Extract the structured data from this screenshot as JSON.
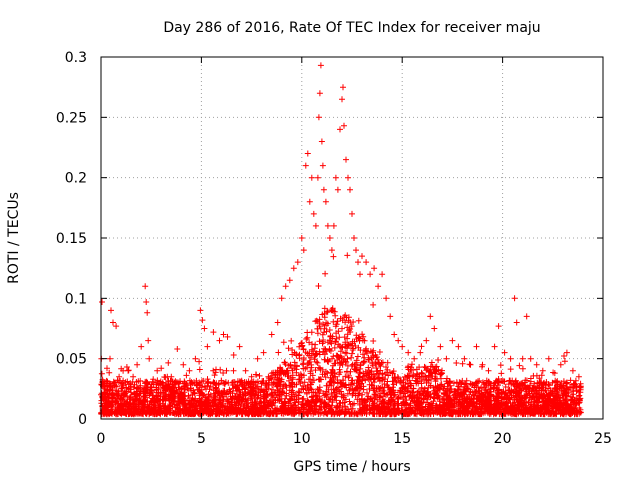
{
  "chart_data": {
    "type": "scatter",
    "title": "Day 286 of 2016, Rate Of TEC Index for receiver maju",
    "xlabel": "GPS time / hours",
    "ylabel": "ROTI / TECUs",
    "xlim": [
      0,
      25
    ],
    "ylim": [
      0,
      0.3
    ],
    "xticks": [
      {
        "value": 0,
        "label": "0"
      },
      {
        "value": 5,
        "label": "5"
      },
      {
        "value": 10,
        "label": "10"
      },
      {
        "value": 15,
        "label": "15"
      },
      {
        "value": 20,
        "label": "20"
      },
      {
        "value": 25,
        "label": "25"
      }
    ],
    "yticks": [
      {
        "value": 0,
        "label": "0"
      },
      {
        "value": 0.05,
        "label": "0.05"
      },
      {
        "value": 0.1,
        "label": "0.1"
      },
      {
        "value": 0.15,
        "label": "0.15"
      },
      {
        "value": 0.2,
        "label": "0.2"
      },
      {
        "value": 0.25,
        "label": "0.25"
      },
      {
        "value": 0.3,
        "label": "0.3"
      }
    ],
    "grid": true,
    "marker": "+",
    "color": "#ff0000",
    "series": [
      {
        "name": "ROTI",
        "points": [
          [
            0.05,
            0.097
          ],
          [
            0.3,
            0.042
          ],
          [
            0.45,
            0.05
          ],
          [
            0.5,
            0.09
          ],
          [
            0.6,
            0.08
          ],
          [
            0.75,
            0.077
          ],
          [
            0.9,
            0.035
          ],
          [
            1.1,
            0.04
          ],
          [
            1.35,
            0.04
          ],
          [
            1.6,
            0.035
          ],
          [
            1.8,
            0.045
          ],
          [
            2.0,
            0.06
          ],
          [
            2.2,
            0.11
          ],
          [
            2.25,
            0.097
          ],
          [
            2.3,
            0.088
          ],
          [
            2.35,
            0.065
          ],
          [
            2.4,
            0.05
          ],
          [
            2.6,
            0.033
          ],
          [
            2.8,
            0.04
          ],
          [
            3.0,
            0.042
          ],
          [
            3.3,
            0.035
          ],
          [
            3.5,
            0.035
          ],
          [
            3.8,
            0.058
          ],
          [
            4.1,
            0.045
          ],
          [
            4.4,
            0.04
          ],
          [
            4.7,
            0.05
          ],
          [
            4.95,
            0.09
          ],
          [
            5.05,
            0.082
          ],
          [
            5.15,
            0.075
          ],
          [
            5.3,
            0.06
          ],
          [
            5.6,
            0.072
          ],
          [
            5.9,
            0.065
          ],
          [
            6.1,
            0.07
          ],
          [
            6.3,
            0.068
          ],
          [
            6.6,
            0.04
          ],
          [
            6.9,
            0.06
          ],
          [
            7.2,
            0.04
          ],
          [
            7.5,
            0.035
          ],
          [
            7.8,
            0.05
          ],
          [
            8.1,
            0.055
          ],
          [
            8.5,
            0.07
          ],
          [
            8.8,
            0.08
          ],
          [
            9.0,
            0.1
          ],
          [
            9.2,
            0.11
          ],
          [
            9.4,
            0.115
          ],
          [
            9.6,
            0.125
          ],
          [
            9.8,
            0.13
          ],
          [
            10.0,
            0.15
          ],
          [
            10.1,
            0.14
          ],
          [
            10.2,
            0.21
          ],
          [
            10.3,
            0.22
          ],
          [
            10.4,
            0.18
          ],
          [
            10.5,
            0.2
          ],
          [
            10.6,
            0.17
          ],
          [
            10.7,
            0.16
          ],
          [
            10.8,
            0.2
          ],
          [
            10.85,
            0.25
          ],
          [
            10.9,
            0.27
          ],
          [
            10.95,
            0.293
          ],
          [
            11.0,
            0.23
          ],
          [
            11.05,
            0.21
          ],
          [
            11.1,
            0.19
          ],
          [
            11.2,
            0.18
          ],
          [
            11.3,
            0.16
          ],
          [
            11.4,
            0.15
          ],
          [
            11.5,
            0.14
          ],
          [
            11.6,
            0.16
          ],
          [
            11.7,
            0.2
          ],
          [
            11.8,
            0.19
          ],
          [
            11.9,
            0.24
          ],
          [
            12.0,
            0.265
          ],
          [
            12.05,
            0.275
          ],
          [
            12.1,
            0.243
          ],
          [
            12.2,
            0.215
          ],
          [
            12.3,
            0.2
          ],
          [
            12.4,
            0.19
          ],
          [
            12.5,
            0.17
          ],
          [
            12.6,
            0.15
          ],
          [
            12.7,
            0.14
          ],
          [
            12.8,
            0.13
          ],
          [
            12.9,
            0.12
          ],
          [
            13.0,
            0.135
          ],
          [
            13.2,
            0.13
          ],
          [
            13.4,
            0.12
          ],
          [
            13.6,
            0.125
          ],
          [
            13.8,
            0.11
          ],
          [
            14.0,
            0.12
          ],
          [
            14.2,
            0.1
          ],
          [
            14.4,
            0.085
          ],
          [
            14.6,
            0.07
          ],
          [
            14.8,
            0.065
          ],
          [
            15.0,
            0.06
          ],
          [
            15.3,
            0.055
          ],
          [
            15.6,
            0.05
          ],
          [
            15.9,
            0.055
          ],
          [
            16.2,
            0.065
          ],
          [
            16.4,
            0.085
          ],
          [
            16.6,
            0.075
          ],
          [
            16.9,
            0.06
          ],
          [
            17.2,
            0.05
          ],
          [
            17.5,
            0.065
          ],
          [
            17.8,
            0.06
          ],
          [
            18.1,
            0.05
          ],
          [
            18.4,
            0.045
          ],
          [
            18.7,
            0.06
          ],
          [
            19.0,
            0.045
          ],
          [
            19.3,
            0.04
          ],
          [
            19.6,
            0.06
          ],
          [
            19.8,
            0.077
          ],
          [
            20.1,
            0.055
          ],
          [
            20.4,
            0.05
          ],
          [
            20.6,
            0.1
          ],
          [
            20.7,
            0.08
          ],
          [
            21.0,
            0.05
          ],
          [
            21.2,
            0.085
          ],
          [
            21.4,
            0.05
          ],
          [
            21.7,
            0.045
          ],
          [
            22.0,
            0.04
          ],
          [
            22.3,
            0.05
          ],
          [
            22.6,
            0.038
          ],
          [
            22.9,
            0.045
          ],
          [
            23.2,
            0.055
          ],
          [
            23.5,
            0.04
          ],
          [
            23.8,
            0.035
          ]
        ]
      }
    ]
  }
}
